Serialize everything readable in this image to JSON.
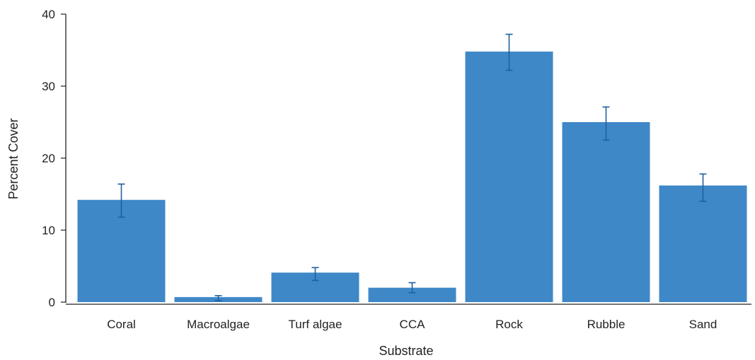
{
  "chart_data": {
    "type": "bar",
    "xlabel": "Substrate",
    "ylabel": "Percent Cover",
    "categories": [
      "Coral",
      "Macroalgae",
      "Turf algae",
      "CCA",
      "Rock",
      "Rubble",
      "Sand"
    ],
    "values": [
      14.2,
      0.7,
      4.1,
      2.0,
      34.8,
      25.0,
      16.2
    ],
    "error_low": [
      11.8,
      0.2,
      3.0,
      1.3,
      32.2,
      22.5,
      14.0
    ],
    "error_high": [
      16.4,
      0.9,
      4.8,
      2.7,
      37.2,
      27.1,
      17.8
    ],
    "ylim": [
      0,
      40
    ],
    "yticks": [
      0,
      10,
      20,
      30,
      40
    ],
    "grid": false,
    "colors": {
      "bar": "#3f88c8",
      "error_bar": "#1f5f9e",
      "axis": "#222222"
    }
  }
}
